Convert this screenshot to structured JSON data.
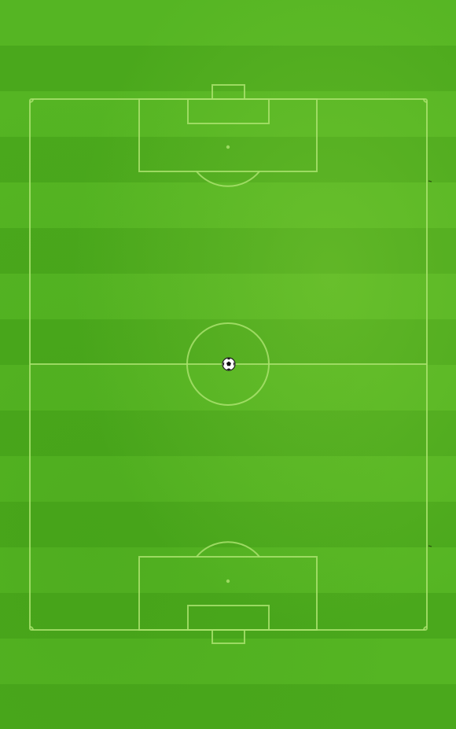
{
  "game": {
    "screen": "football-pitch",
    "orientation": "portrait",
    "ball": {
      "position": "center-spot",
      "color_primary": "#ffffff",
      "color_panels": "#111111"
    }
  },
  "colors": {
    "grass_light": "#55b523",
    "grass_dark": "#4aa81c",
    "line": "#a9e26d"
  },
  "icons": {
    "ball": "soccer-ball-icon"
  }
}
